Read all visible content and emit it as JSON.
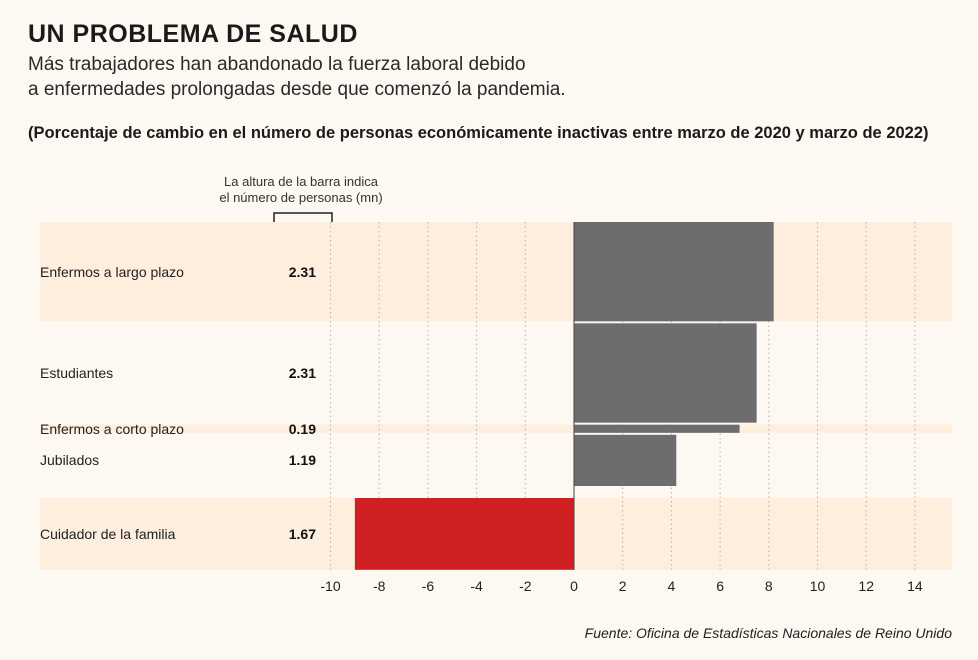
{
  "header": {
    "title": "UN PROBLEMA DE SALUD",
    "subtitle_line1": "Más trabajadores han abandonado la fuerza laboral debido",
    "subtitle_line2": "a enfermedades prolongadas desde que comenzó la pandemia.",
    "measure": "(Porcentaje de cambio en el número de personas económicamente inactivas entre marzo de 2020 y marzo de 2022)"
  },
  "scale_note": {
    "line1": "La altura de la barra indica",
    "line2": "el número de personas (mn)"
  },
  "source": "Fuente: Oficina de Estadísticas Nacionales de Reino Unido",
  "colors": {
    "positive": "#6d6d70",
    "negative": "#d01f23",
    "band": "#fdeedd",
    "background": "#fdf8f2",
    "grid": "#b5b5b5"
  },
  "chart_data": {
    "type": "bar",
    "orientation": "horizontal",
    "variable_width": true,
    "title": "UN PROBLEMA DE SALUD",
    "xlabel": "",
    "ylabel": "",
    "xlim": [
      -10,
      15
    ],
    "xticks": [
      -10,
      -8,
      -6,
      -4,
      -2,
      0,
      2,
      4,
      6,
      8,
      10,
      12,
      14
    ],
    "grid": true,
    "bar_height_meaning": "La altura de la barra indica el número de personas (mn)",
    "categories": [
      "Enfermos a largo plazo",
      "Estudiantes",
      "Enfermos a corto plazo",
      "Jubilados",
      "Cuidador de la familia"
    ],
    "values": [
      8.2,
      7.5,
      6.8,
      4.2,
      -9.0
    ],
    "sizes": [
      "2.31",
      "2.31",
      "0.19",
      "1.19",
      "1.67"
    ],
    "bar_heights": [
      2.31,
      2.31,
      0.19,
      1.19,
      1.67
    ]
  }
}
